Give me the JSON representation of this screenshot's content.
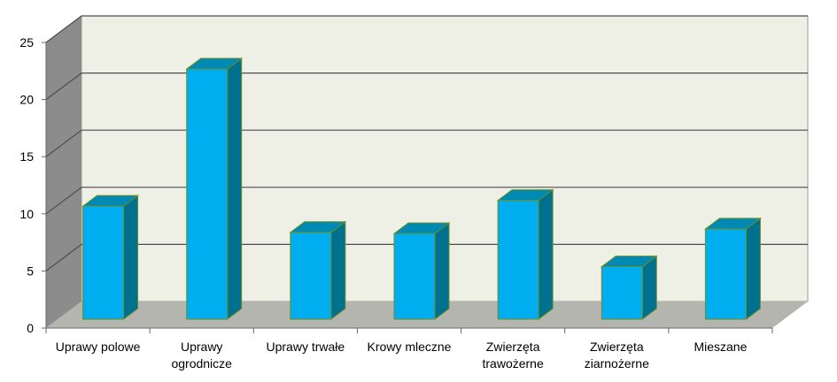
{
  "chart_data": {
    "type": "bar",
    "title": "",
    "xlabel": "",
    "ylabel": "",
    "categories": [
      [
        "Uprawy polowe"
      ],
      [
        "Uprawy",
        "ogrodnicze"
      ],
      [
        "Uprawy trwałe"
      ],
      [
        "Krowy mleczne"
      ],
      [
        "Zwierzęta",
        "trawożerne"
      ],
      [
        "Zwierzęta",
        "ziarnożerne"
      ],
      [
        "Mieszane"
      ]
    ],
    "values": [
      9.9,
      21.9,
      7.6,
      7.5,
      10.4,
      4.6,
      7.9
    ],
    "ylim": [
      0,
      25
    ],
    "yticks": [
      "0",
      "5",
      "10",
      "15",
      "20",
      "25"
    ],
    "grid": true,
    "style": "3d-column",
    "colors": {
      "bar_front": "#00aeef",
      "bar_side": "#00708f",
      "bar_top": "#0089b3",
      "bar_edge": "#6b8e23",
      "back_wall": "#eef0e6",
      "side_wall": "#8c8c8c",
      "floor": "#b5b5b0",
      "gridline": "#4d4d4d"
    }
  }
}
